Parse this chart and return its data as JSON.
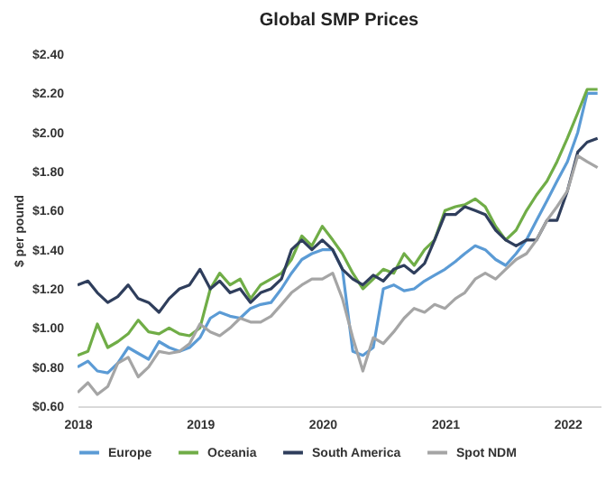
{
  "chart_data": {
    "type": "line",
    "title": "Global SMP Prices",
    "ylabel": "$ per pound",
    "x": [
      "2018-01",
      "2018-02",
      "2018-03",
      "2018-04",
      "2018-05",
      "2018-06",
      "2018-07",
      "2018-08",
      "2018-09",
      "2018-10",
      "2018-11",
      "2018-12",
      "2019-01",
      "2019-02",
      "2019-03",
      "2019-04",
      "2019-05",
      "2019-06",
      "2019-07",
      "2019-08",
      "2019-09",
      "2019-10",
      "2019-11",
      "2019-12",
      "2020-01",
      "2020-02",
      "2020-03",
      "2020-04",
      "2020-05",
      "2020-06",
      "2020-07",
      "2020-08",
      "2020-09",
      "2020-10",
      "2020-11",
      "2020-12",
      "2021-01",
      "2021-02",
      "2021-03",
      "2021-04",
      "2021-05",
      "2021-06",
      "2021-07",
      "2021-08",
      "2021-09",
      "2021-10",
      "2021-11",
      "2021-12",
      "2022-01",
      "2022-02",
      "2022-03",
      "2022-04"
    ],
    "series": [
      {
        "name": "Europe",
        "color": "#5b9bd5",
        "values": [
          0.8,
          0.83,
          0.78,
          0.77,
          0.82,
          0.9,
          0.87,
          0.84,
          0.93,
          0.9,
          0.88,
          0.9,
          0.95,
          1.05,
          1.08,
          1.06,
          1.05,
          1.1,
          1.12,
          1.13,
          1.2,
          1.28,
          1.35,
          1.38,
          1.4,
          1.4,
          1.3,
          0.88,
          0.86,
          0.9,
          1.2,
          1.22,
          1.19,
          1.2,
          1.24,
          1.27,
          1.3,
          1.34,
          1.38,
          1.42,
          1.4,
          1.35,
          1.32,
          1.38,
          1.45,
          1.55,
          1.65,
          1.75,
          1.85,
          2.0,
          2.2,
          2.2
        ]
      },
      {
        "name": "Oceania",
        "color": "#70ad47",
        "values": [
          0.86,
          0.88,
          1.02,
          0.9,
          0.93,
          0.97,
          1.04,
          0.98,
          0.97,
          1.0,
          0.97,
          0.96,
          1.0,
          1.2,
          1.28,
          1.22,
          1.25,
          1.15,
          1.22,
          1.25,
          1.28,
          1.35,
          1.47,
          1.42,
          1.52,
          1.45,
          1.38,
          1.28,
          1.2,
          1.25,
          1.3,
          1.28,
          1.38,
          1.32,
          1.4,
          1.45,
          1.6,
          1.62,
          1.63,
          1.66,
          1.62,
          1.52,
          1.45,
          1.5,
          1.6,
          1.68,
          1.75,
          1.85,
          1.97,
          2.1,
          2.22,
          2.22
        ]
      },
      {
        "name": "South America",
        "color": "#2f3e5c",
        "values": [
          1.22,
          1.24,
          1.18,
          1.13,
          1.16,
          1.22,
          1.15,
          1.13,
          1.08,
          1.15,
          1.2,
          1.22,
          1.3,
          1.2,
          1.24,
          1.18,
          1.2,
          1.13,
          1.18,
          1.2,
          1.25,
          1.4,
          1.45,
          1.4,
          1.45,
          1.4,
          1.3,
          1.25,
          1.22,
          1.27,
          1.24,
          1.3,
          1.32,
          1.28,
          1.33,
          1.45,
          1.58,
          1.58,
          1.62,
          1.6,
          1.58,
          1.5,
          1.45,
          1.42,
          1.45,
          1.45,
          1.55,
          1.55,
          1.7,
          1.9,
          1.95,
          1.97
        ]
      },
      {
        "name": "Spot NDM",
        "color": "#a5a5a5",
        "values": [
          0.67,
          0.72,
          0.66,
          0.7,
          0.82,
          0.85,
          0.75,
          0.8,
          0.88,
          0.87,
          0.88,
          0.92,
          1.02,
          0.98,
          0.96,
          1.0,
          1.05,
          1.03,
          1.03,
          1.06,
          1.12,
          1.18,
          1.22,
          1.25,
          1.25,
          1.28,
          1.15,
          0.95,
          0.78,
          0.95,
          0.92,
          0.98,
          1.05,
          1.1,
          1.08,
          1.12,
          1.1,
          1.15,
          1.18,
          1.25,
          1.28,
          1.25,
          1.3,
          1.35,
          1.38,
          1.45,
          1.55,
          1.62,
          1.7,
          1.88,
          1.85,
          1.82
        ]
      }
    ],
    "xlim": [
      "2018-01",
      "2022-04-10"
    ],
    "xticks": [
      "2018",
      "2019",
      "2020",
      "2021",
      "2022"
    ],
    "ylim": [
      0.6,
      2.4
    ],
    "yticks": [
      {
        "value": 0.6,
        "label": "$0.60"
      },
      {
        "value": 0.8,
        "label": "$0.80"
      },
      {
        "value": 1.0,
        "label": "$1.00"
      },
      {
        "value": 1.2,
        "label": "$1.20"
      },
      {
        "value": 1.4,
        "label": "$1.40"
      },
      {
        "value": 1.6,
        "label": "$1.60"
      },
      {
        "value": 1.8,
        "label": "$1.80"
      },
      {
        "value": 2.0,
        "label": "$2.00"
      },
      {
        "value": 2.2,
        "label": "$2.20"
      },
      {
        "value": 2.4,
        "label": "$2.40"
      }
    ],
    "legend": "bottom",
    "grid": false
  }
}
